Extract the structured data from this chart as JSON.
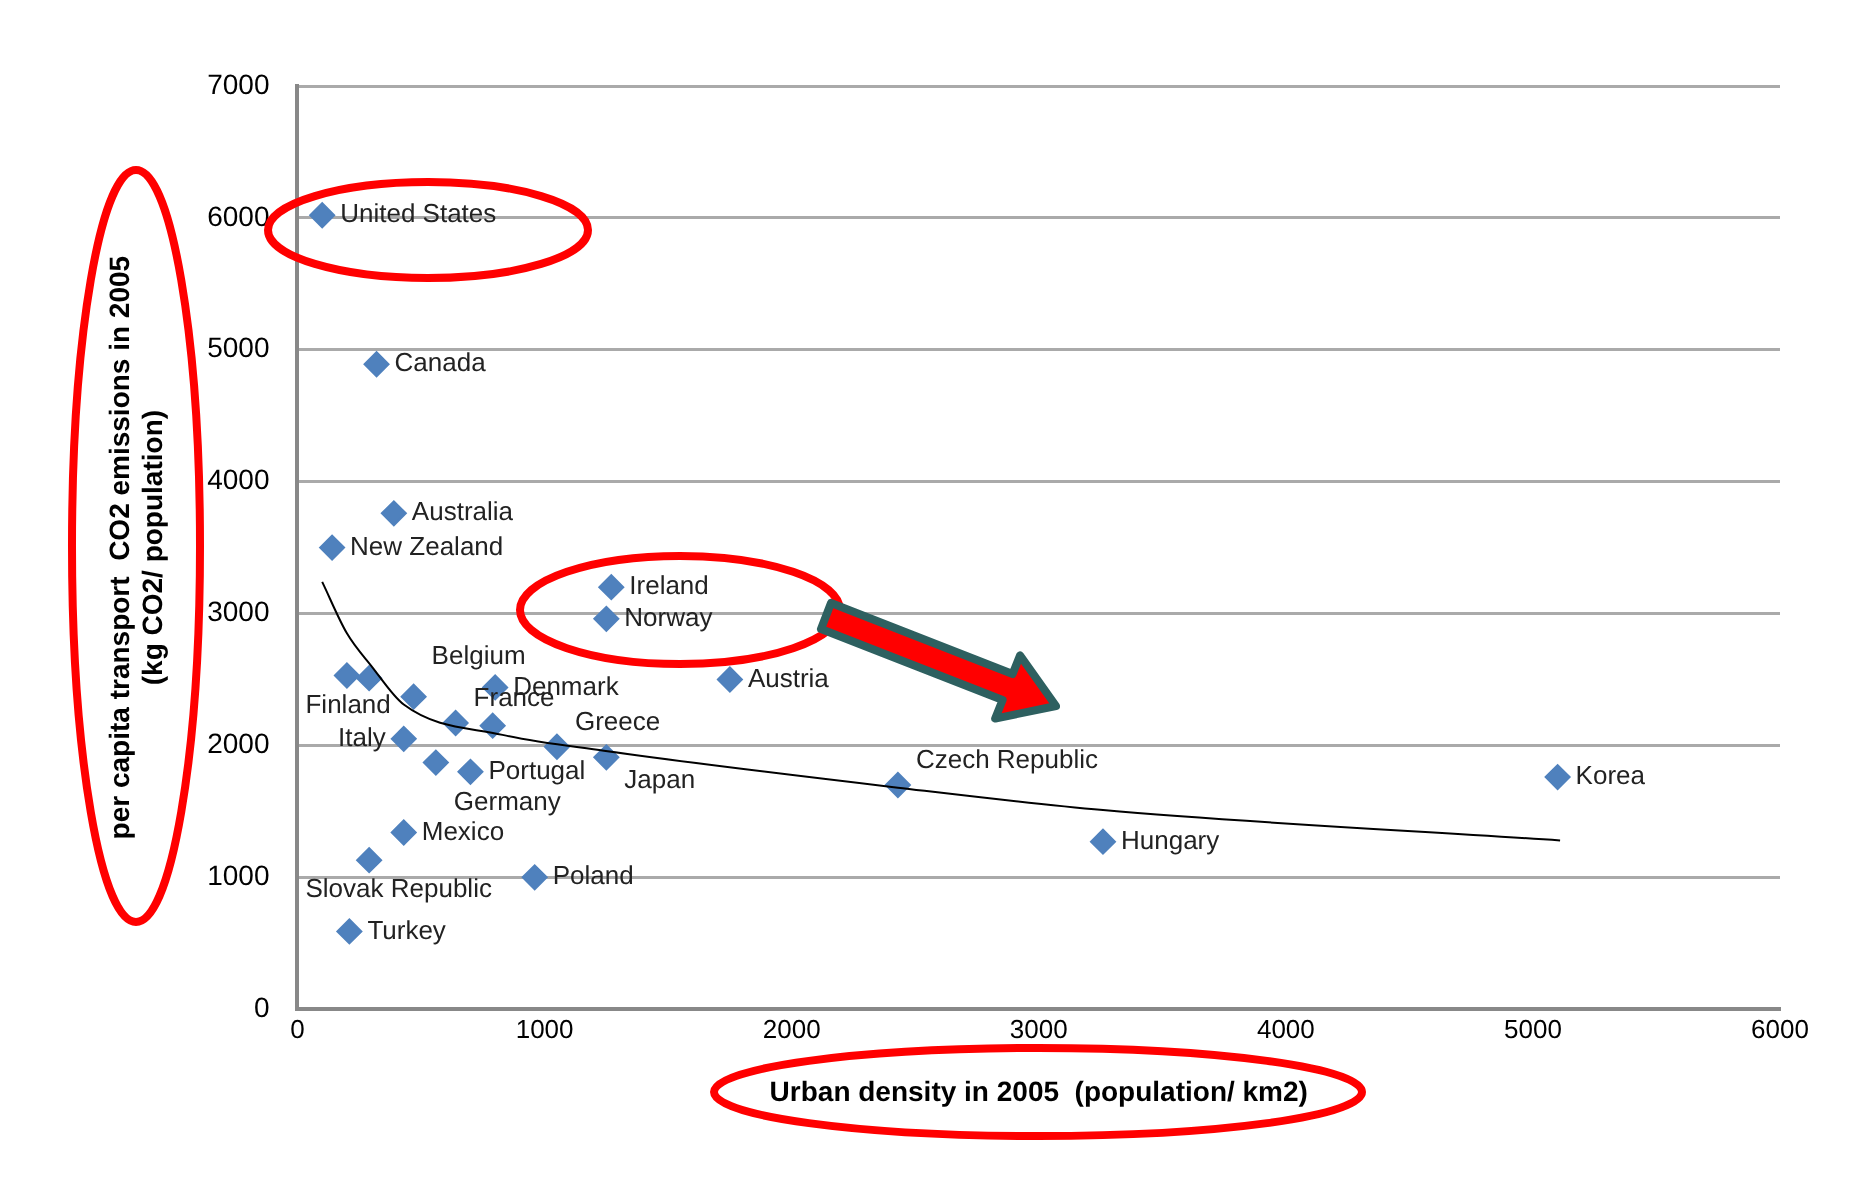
{
  "chart_data": {
    "type": "scatter",
    "xlabel": "Urban density in 2005  (population/ km2)",
    "ylabel": "per capita transport  CO2 emissions in 2005\n(kg CO2/ population)",
    "xlim": [
      0,
      6000
    ],
    "xticks": [
      0,
      1000,
      2000,
      3000,
      4000,
      5000,
      6000
    ],
    "ylim": [
      0,
      7000
    ],
    "yticks": [
      0,
      1000,
      2000,
      3000,
      4000,
      5000,
      6000,
      7000
    ],
    "grid": "y",
    "legend": false,
    "series": [
      {
        "color": "#4f81bd",
        "marker": "diamond",
        "x": [
          100,
          320,
          390,
          140,
          1270,
          1250,
          200,
          290,
          470,
          800,
          1750,
          640,
          790,
          1050,
          1250,
          430,
          560,
          700,
          430,
          290,
          960,
          210,
          2430,
          3260,
          5100
        ],
        "values": [
          6020,
          4890,
          3760,
          3500,
          3200,
          2960,
          2530,
          2510,
          2370,
          2440,
          2500,
          2170,
          2150,
          1990,
          1910,
          2050,
          1870,
          1800,
          1340,
          1130,
          1000,
          590,
          1700,
          1270,
          1760
        ]
      },
      {
        "type": "line",
        "color": "#000000",
        "marker": "none",
        "x": [
          100,
          200,
          300,
          430,
          830,
          1240,
          2430,
          3260,
          5110
        ],
        "values": [
          3240,
          2850,
          2600,
          2310,
          2080,
          1960,
          1680,
          1510,
          1280
        ]
      }
    ],
    "annotations": [
      {
        "text": "United States",
        "x": 100,
        "y": 6020
      },
      {
        "text": "Canada",
        "x": 320,
        "y": 4890
      },
      {
        "text": "Australia",
        "x": 390,
        "y": 3760
      },
      {
        "text": "New Zealand",
        "x": 140,
        "y": 3500
      },
      {
        "text": "Ireland",
        "x": 1270,
        "y": 3200
      },
      {
        "text": "Norway",
        "x": 1250,
        "y": 2960
      },
      {
        "text": "Finland",
        "x": 200,
        "y": 2530
      },
      {
        "text": "Belgium",
        "x": 470,
        "y": 2370
      },
      {
        "text": "Denmark",
        "x": 800,
        "y": 2440
      },
      {
        "text": "Austria",
        "x": 1750,
        "y": 2500
      },
      {
        "text": "France",
        "x": 640,
        "y": 2170
      },
      {
        "text": "Greece",
        "x": 1050,
        "y": 1990
      },
      {
        "text": "Japan",
        "x": 1250,
        "y": 1910
      },
      {
        "text": "Italy",
        "x": 430,
        "y": 2050
      },
      {
        "text": "Germany",
        "x": 560,
        "y": 1870
      },
      {
        "text": "Portugal",
        "x": 700,
        "y": 1800
      },
      {
        "text": "Mexico",
        "x": 430,
        "y": 1340
      },
      {
        "text": "Slovak Republic",
        "x": 290,
        "y": 1130
      },
      {
        "text": "Poland",
        "x": 960,
        "y": 1000
      },
      {
        "text": "Turkey",
        "x": 210,
        "y": 590
      },
      {
        "text": "Czech Republic",
        "x": 2430,
        "y": 1700
      },
      {
        "text": "Hungary",
        "x": 3260,
        "y": 1270
      },
      {
        "text": "Korea",
        "x": 5100,
        "y": 1760
      }
    ]
  }
}
